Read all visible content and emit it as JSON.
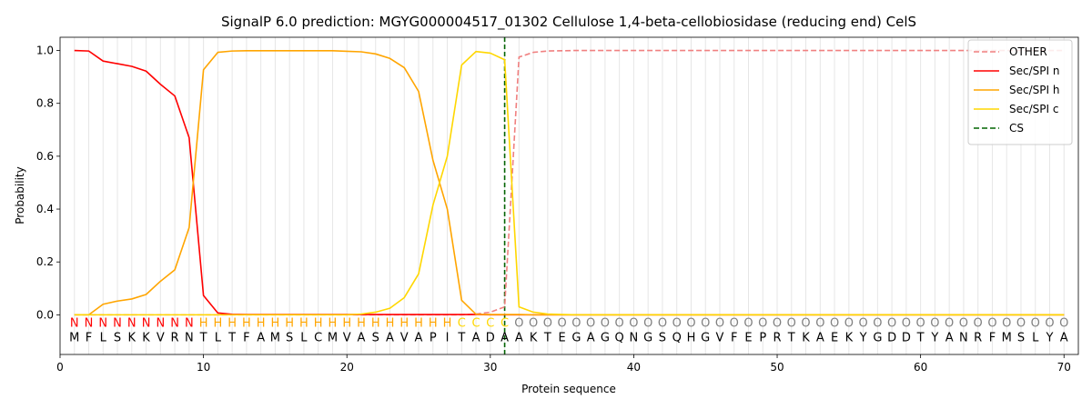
{
  "chart_data": {
    "type": "line",
    "title": "SignalP 6.0 prediction: MGYG000004517_01302 Cellulose 1,4-beta-cellobiosidase (reducing end) CelS",
    "xlabel": "Protein sequence",
    "ylabel": "Probability",
    "xlim": [
      0,
      71
    ],
    "ylim": [
      -0.15,
      1.05
    ],
    "xticks": [
      0,
      10,
      20,
      30,
      40,
      50,
      60,
      70
    ],
    "yticks": [
      0.0,
      0.2,
      0.4,
      0.6,
      0.8,
      1.0
    ],
    "x_tick_labels": [
      "0",
      "10",
      "20",
      "30",
      "40",
      "50",
      "60",
      "70"
    ],
    "y_tick_labels": [
      "0.0",
      "0.2",
      "0.4",
      "0.6",
      "0.8",
      "1.0"
    ],
    "grid": "vertical lines at each residue",
    "legend_position": "top-right",
    "sequence": [
      "M",
      "F",
      "L",
      "S",
      "K",
      "K",
      "V",
      "R",
      "N",
      "T",
      "L",
      "T",
      "F",
      "A",
      "M",
      "S",
      "L",
      "C",
      "M",
      "V",
      "A",
      "S",
      "A",
      "V",
      "A",
      "P",
      "I",
      "T",
      "A",
      "D",
      "A",
      "A",
      "K",
      "T",
      "E",
      "G",
      "A",
      "G",
      "Q",
      "N",
      "G",
      "S",
      "Q",
      "H",
      "G",
      "V",
      "F",
      "E",
      "P",
      "R",
      "T",
      "K",
      "A",
      "E",
      "K",
      "Y",
      "G",
      "D",
      "D",
      "T",
      "Y",
      "A",
      "N",
      "R",
      "F",
      "M",
      "S",
      "L",
      "Y",
      "A"
    ],
    "region_labels": [
      "N",
      "N",
      "N",
      "N",
      "N",
      "N",
      "N",
      "N",
      "N",
      "H",
      "H",
      "H",
      "H",
      "H",
      "H",
      "H",
      "H",
      "H",
      "H",
      "H",
      "H",
      "H",
      "H",
      "H",
      "H",
      "H",
      "H",
      "C",
      "C",
      "C",
      "C",
      "O",
      "O",
      "O",
      "O",
      "O",
      "O",
      "O",
      "O",
      "O",
      "O",
      "O",
      "O",
      "O",
      "O",
      "O",
      "O",
      "O",
      "O",
      "O",
      "O",
      "O",
      "O",
      "O",
      "O",
      "O",
      "O",
      "O",
      "O",
      "O",
      "O",
      "O",
      "O",
      "O",
      "O",
      "O",
      "O",
      "O",
      "O",
      "O"
    ],
    "region_colors": {
      "N": "#ff0000",
      "H": "#ffa500",
      "C": "#ffd700",
      "O": "#808080"
    },
    "cleavage_site": 31,
    "series": [
      {
        "name": "OTHER",
        "color": "#f08080",
        "dash": "dashed",
        "values": [
          0,
          0,
          0,
          0,
          0,
          0,
          0,
          0,
          0,
          0,
          0,
          0,
          0,
          0,
          0,
          0,
          0,
          0,
          0,
          0,
          0,
          0,
          0,
          0,
          0,
          0,
          0,
          0,
          0.003,
          0.01,
          0.03,
          0.975,
          0.993,
          0.998,
          0.999,
          1,
          1,
          1,
          1,
          1,
          1,
          1,
          1,
          1,
          1,
          1,
          1,
          1,
          1,
          1,
          1,
          1,
          1,
          1,
          1,
          1,
          1,
          1,
          1,
          1,
          1,
          1,
          1,
          1,
          1,
          1,
          1,
          1,
          1,
          1
        ]
      },
      {
        "name": "Sec/SPI n",
        "color": "#ff0000",
        "dash": "solid",
        "values": [
          1.0,
          0.998,
          0.96,
          0.95,
          0.94,
          0.922,
          0.872,
          0.828,
          0.67,
          0.073,
          0.007,
          0.002,
          0.001,
          0.001,
          0.001,
          0.001,
          0.001,
          0.001,
          0.001,
          0.001,
          0.001,
          0.001,
          0.001,
          0.001,
          0.001,
          0.001,
          0.001,
          0.001,
          0.001,
          0,
          0,
          0,
          0,
          0,
          0,
          0,
          0,
          0,
          0,
          0,
          0,
          0,
          0,
          0,
          0,
          0,
          0,
          0,
          0,
          0,
          0,
          0,
          0,
          0,
          0,
          0,
          0,
          0,
          0,
          0,
          0,
          0,
          0,
          0,
          0,
          0,
          0,
          0,
          0,
          0
        ]
      },
      {
        "name": "Sec/SPI h",
        "color": "#ffa500",
        "dash": "solid",
        "values": [
          0,
          0,
          0.04,
          0.052,
          0.06,
          0.077,
          0.127,
          0.17,
          0.33,
          0.927,
          0.993,
          0.998,
          0.999,
          0.999,
          0.999,
          0.999,
          0.999,
          0.999,
          0.999,
          0.997,
          0.995,
          0.987,
          0.97,
          0.935,
          0.845,
          0.585,
          0.4,
          0.055,
          0.002,
          0.001,
          0.001,
          0.001,
          0,
          0,
          0,
          0,
          0,
          0,
          0,
          0,
          0,
          0,
          0,
          0,
          0,
          0,
          0,
          0,
          0,
          0,
          0,
          0,
          0,
          0,
          0,
          0,
          0,
          0,
          0,
          0,
          0,
          0,
          0,
          0,
          0,
          0,
          0,
          0,
          0,
          0
        ]
      },
      {
        "name": "Sec/SPI c",
        "color": "#ffd700",
        "dash": "solid",
        "values": [
          0,
          0,
          0,
          0,
          0,
          0,
          0,
          0,
          0,
          0,
          0,
          0,
          0,
          0,
          0,
          0,
          0,
          0,
          0,
          0,
          0.003,
          0.01,
          0.025,
          0.065,
          0.155,
          0.415,
          0.6,
          0.945,
          0.996,
          0.99,
          0.965,
          0.03,
          0.01,
          0.003,
          0.001,
          0,
          0,
          0,
          0,
          0,
          0,
          0,
          0,
          0,
          0,
          0,
          0,
          0,
          0,
          0,
          0,
          0,
          0,
          0,
          0,
          0,
          0,
          0,
          0,
          0,
          0,
          0,
          0,
          0,
          0,
          0,
          0,
          0,
          0,
          0
        ]
      },
      {
        "name": "CS",
        "color": "#006400",
        "dash": "dashed",
        "values": []
      }
    ]
  }
}
